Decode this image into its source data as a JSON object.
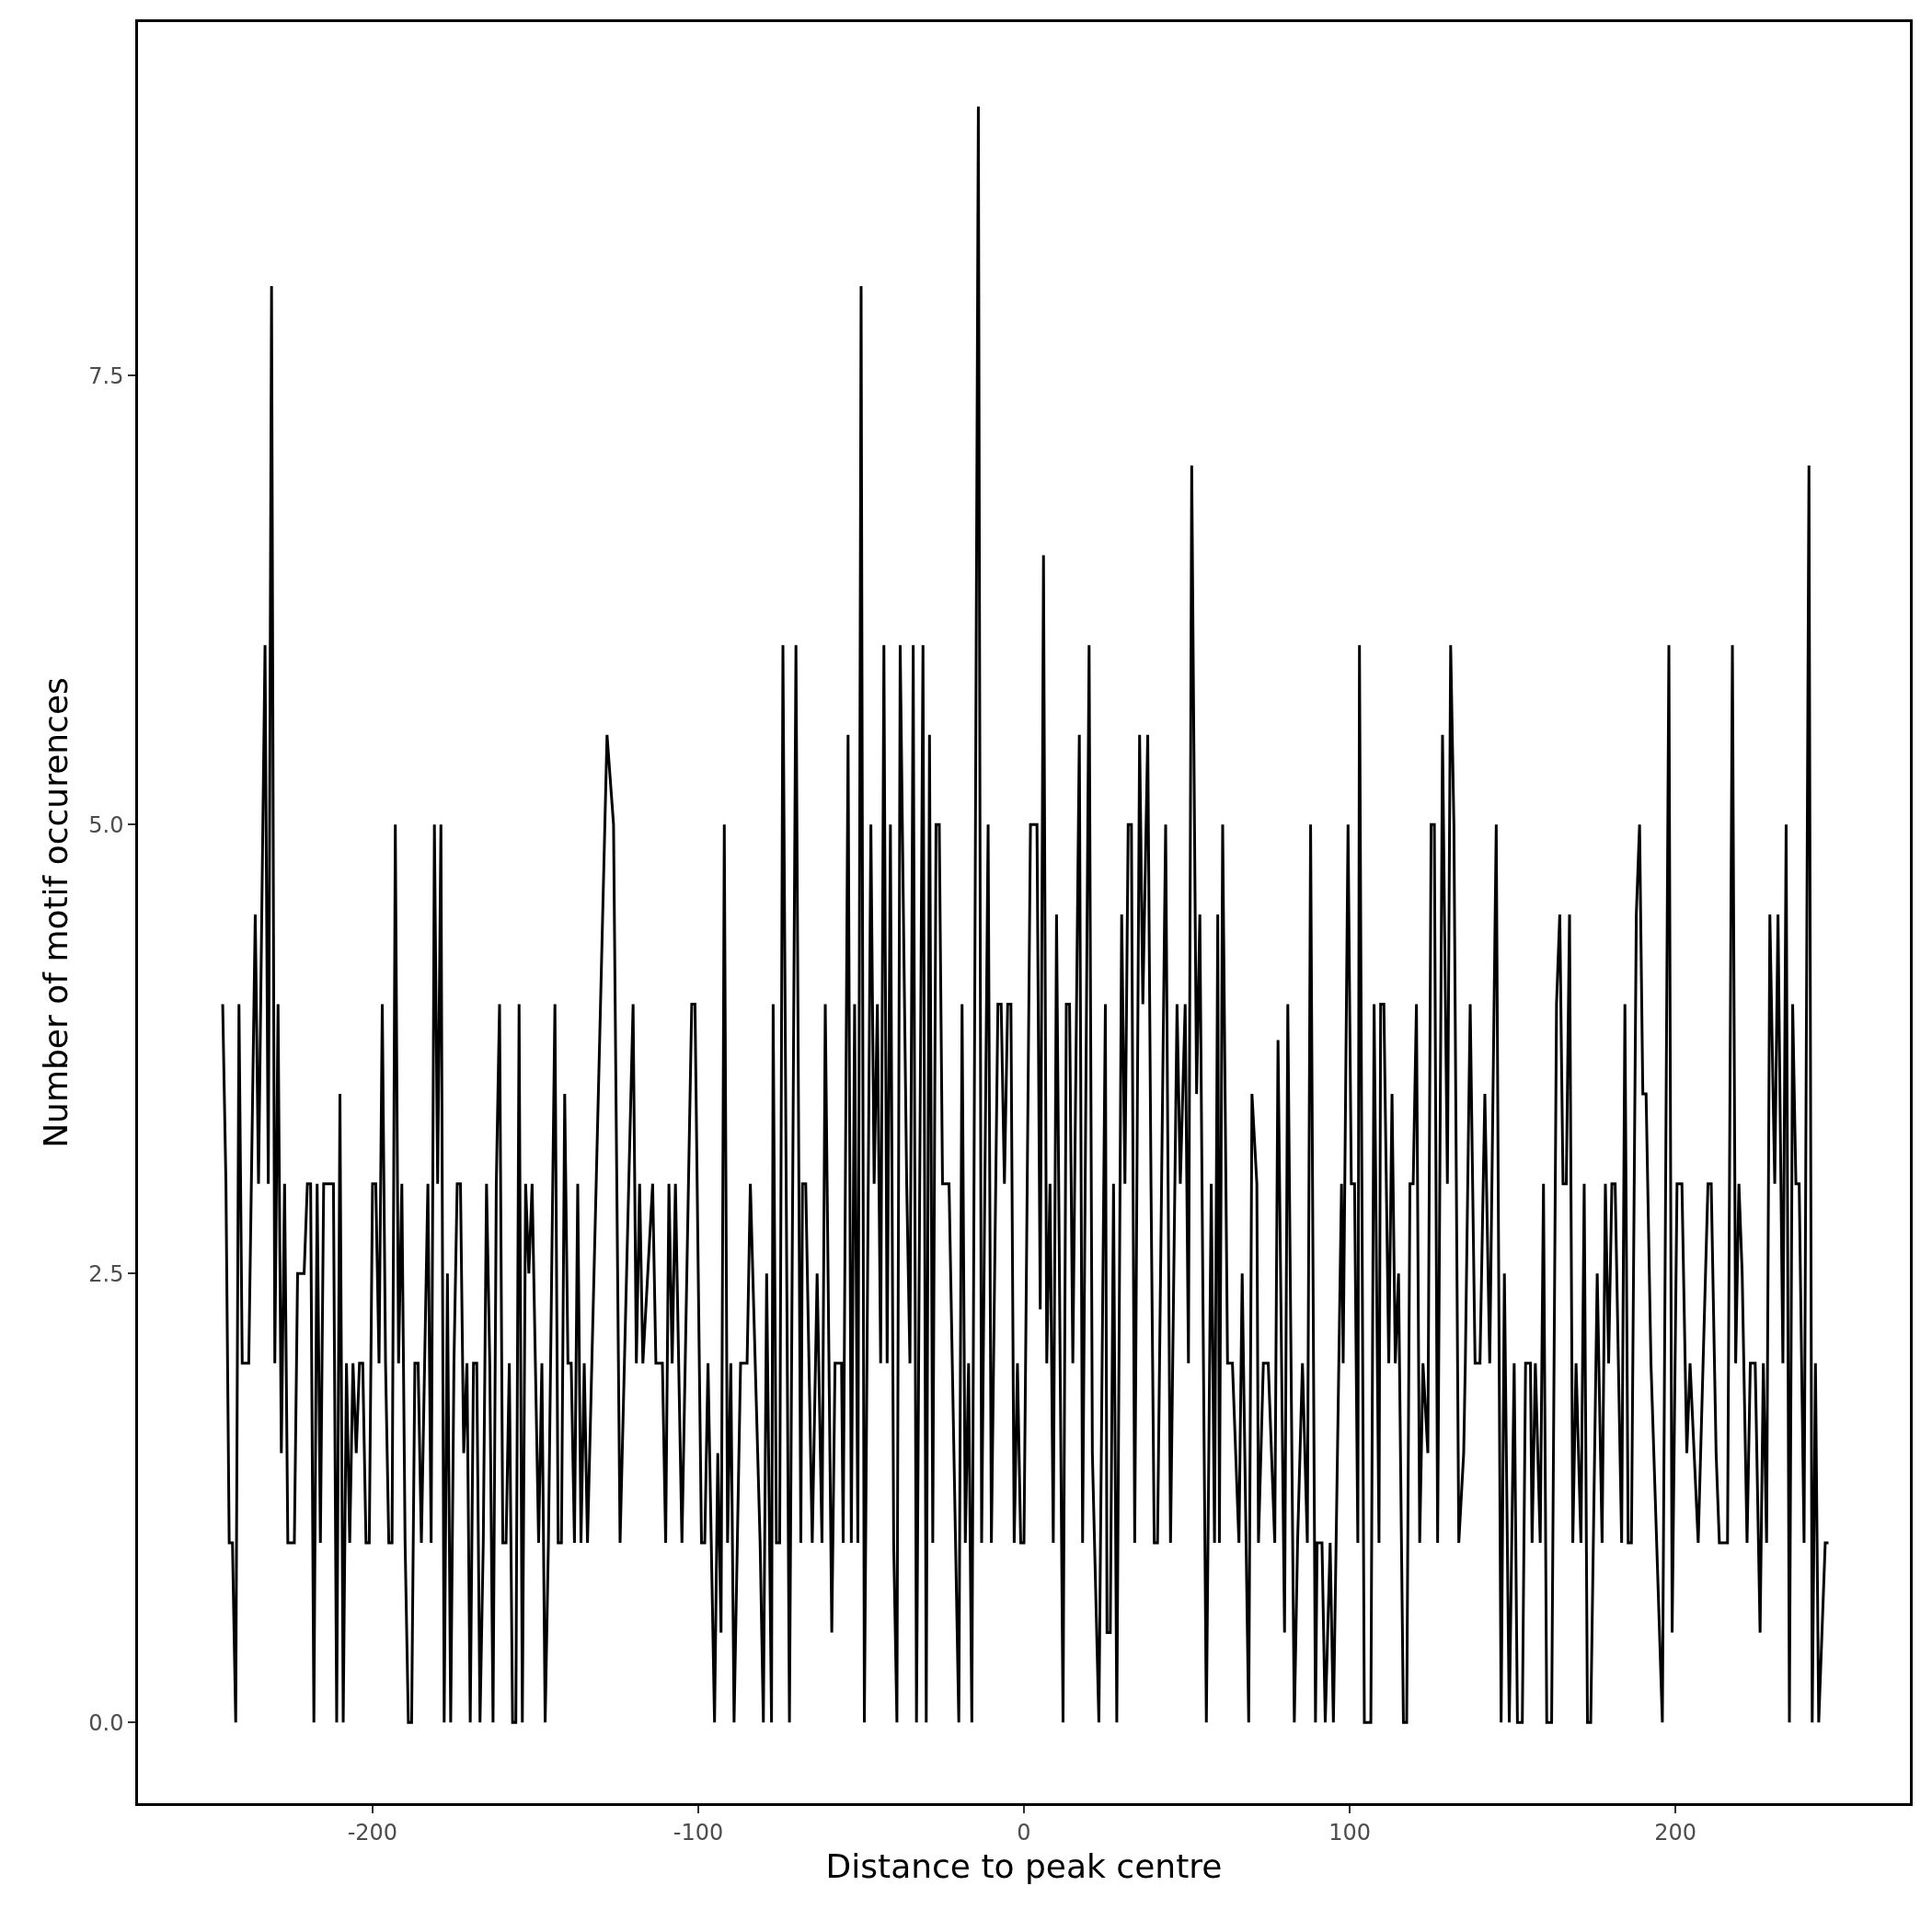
{
  "chart_data": {
    "type": "line",
    "xlabel": "Distance to peak centre",
    "ylabel": "Number of motif occurences",
    "xlim": [
      -272,
      272
    ],
    "ylim": [
      -0.45,
      9.47
    ],
    "xticks": [
      -200,
      -100,
      0,
      100,
      200
    ],
    "yticks": [
      {
        "value": 0,
        "label": "0.0"
      },
      {
        "value": 2.5,
        "label": "2.5"
      },
      {
        "value": 5,
        "label": "5.0"
      },
      {
        "value": 7.5,
        "label": "7.5"
      }
    ],
    "grid": false,
    "marker": "none",
    "line_style": "solid",
    "series": [
      {
        "color": "#000000",
        "x": [
          -246,
          -245,
          -244,
          -243,
          -242,
          -241,
          -240,
          -238,
          -236,
          -235,
          -233,
          -232,
          -231,
          -230,
          -229,
          -228,
          -227,
          -226,
          -224,
          -223,
          -221,
          -220,
          -219,
          -218,
          -217,
          -216,
          -215,
          -212,
          -211,
          -210,
          -209,
          -208,
          -207,
          -206,
          -205,
          -204,
          -203,
          -202,
          -201,
          -200,
          -199,
          -198,
          -197,
          -196,
          -195,
          -194,
          -193,
          -192,
          -191,
          -190,
          -189,
          -188,
          -187,
          -186,
          -185,
          -184,
          -183,
          -182,
          -181,
          -180,
          -179,
          -178,
          -177,
          -176,
          -175,
          -174,
          -173,
          -172,
          -171,
          -170,
          -169,
          -168,
          -167,
          -166,
          -165,
          -164,
          -163,
          -162,
          -161,
          -160,
          -159,
          -158,
          -157,
          -156,
          -155,
          -154,
          -153,
          -152,
          -151,
          -150,
          -149,
          -148,
          -147,
          -146,
          -144,
          -143,
          -142,
          -141,
          -140,
          -139,
          -138,
          -137,
          -136,
          -135,
          -134,
          -130,
          -128,
          -126,
          -124,
          -120,
          -119,
          -118,
          -117,
          -114,
          -113,
          -111,
          -110,
          -109,
          -108,
          -107,
          -105,
          -104,
          -102,
          -101,
          -99,
          -98,
          -97,
          -95,
          -94,
          -93,
          -92,
          -91,
          -90,
          -89,
          -87,
          -85,
          -84,
          -81,
          -80,
          -79,
          -77.5,
          -77,
          -76,
          -75,
          -74,
          -72,
          -70,
          -68.5,
          -68,
          -67,
          -65,
          -63.5,
          -62,
          -61,
          -59,
          -58,
          -56,
          -55.5,
          -54,
          -53,
          -52,
          -51,
          -50,
          -49,
          -47,
          -46,
          -45,
          -44,
          -43,
          -42,
          -41,
          -40,
          -39,
          -38,
          -36,
          -35,
          -34,
          -33,
          -31,
          -30,
          -29,
          -28,
          -27,
          -26,
          -25,
          -23,
          -20,
          -19,
          -18,
          -17,
          -16,
          -14,
          -13,
          -11,
          -10,
          -8,
          -7,
          -6,
          -5,
          -4,
          -3,
          -2,
          -1,
          0,
          2,
          4,
          5,
          6,
          7,
          8,
          9,
          10,
          12,
          13,
          14,
          15,
          17,
          18,
          20,
          21,
          23,
          25,
          25.5,
          26.5,
          27.5,
          28.5,
          30,
          31,
          32,
          33,
          34,
          35.5,
          36.5,
          38,
          39,
          40,
          41,
          43.5,
          45,
          47,
          48,
          49.5,
          50.5,
          51.5,
          53,
          54,
          56,
          57.5,
          58.5,
          59.5,
          60,
          61,
          62.5,
          64,
          66,
          67,
          69,
          70,
          71.5,
          72,
          73.5,
          75,
          77,
          78,
          80,
          81,
          83,
          84,
          85.5,
          87,
          88,
          89.5,
          90,
          91.5,
          92.5,
          94,
          95,
          97.5,
          98,
          99.5,
          100.5,
          101.5,
          102.5,
          103,
          104.5,
          106.5,
          107.5,
          109,
          109.5,
          110.5,
          112,
          113,
          114,
          115,
          116.5,
          117.5,
          118.5,
          119.5,
          120.5,
          121.5,
          122.5,
          124,
          125,
          126,
          127,
          128.5,
          130,
          131,
          132,
          133.5,
          135,
          135.5,
          137,
          138.5,
          140,
          141.5,
          143,
          145,
          146.5,
          147.5,
          149,
          150.5,
          151.5,
          153,
          154,
          155.5,
          156,
          157,
          158.5,
          159.5,
          160.5,
          162,
          163.5,
          164.5,
          165.5,
          166.5,
          167.5,
          168.5,
          169.5,
          171,
          172,
          173,
          174,
          176,
          177.5,
          178.5,
          179.5,
          180.5,
          181.5,
          183.5,
          184.5,
          185.5,
          186.5,
          188,
          189,
          190,
          191,
          192.5,
          196,
          198,
          199,
          200.5,
          202,
          203.5,
          204.5,
          207,
          208.5,
          210,
          211,
          212.5,
          213.5,
          216,
          217.5,
          218.5,
          219.5,
          220.5,
          222,
          223,
          224.5,
          226,
          227,
          228,
          229,
          230.5,
          231.5,
          233,
          234,
          235,
          236,
          237,
          238,
          239.5,
          241,
          242,
          243,
          244,
          246,
          247
        ],
        "values": [
          4,
          3,
          1,
          1,
          0,
          4,
          2,
          2,
          4.5,
          3,
          6,
          3,
          8,
          2,
          4,
          1.5,
          3,
          1,
          1,
          2.5,
          2.5,
          3,
          3,
          0,
          3,
          1,
          3,
          3,
          0,
          3.5,
          0,
          2,
          1,
          2,
          1.5,
          2,
          2,
          1,
          1,
          3,
          3,
          2,
          4,
          2,
          1,
          1,
          5,
          2,
          3,
          1,
          0,
          0,
          2,
          2,
          1,
          2,
          3,
          1,
          5,
          3,
          5,
          0,
          2.5,
          0,
          2,
          3,
          3,
          1.5,
          2,
          0,
          2,
          2,
          0,
          1,
          3,
          2,
          0,
          3,
          4,
          1,
          1,
          2,
          0,
          0,
          4,
          0,
          3,
          2.5,
          3,
          2,
          1,
          2,
          0,
          1,
          4,
          1,
          1,
          3.5,
          2,
          2,
          1,
          3,
          1,
          2,
          1,
          4,
          5.5,
          5,
          1,
          4,
          2,
          3,
          2,
          3,
          2,
          2,
          1,
          3,
          2,
          3,
          1,
          2,
          4,
          4,
          1,
          1,
          2,
          0,
          1.5,
          0.5,
          5,
          1,
          2,
          0,
          2,
          2,
          3,
          1,
          0,
          2.5,
          0,
          4,
          1,
          1,
          6,
          0,
          6,
          1,
          3,
          3,
          1,
          2.5,
          1,
          4,
          0.5,
          2,
          2,
          1,
          5.5,
          1,
          4,
          1,
          8,
          0,
          5,
          3,
          4,
          2,
          6,
          2,
          5,
          1,
          0,
          6,
          3,
          2,
          6,
          0,
          6,
          0,
          5.5,
          1,
          5,
          5,
          3,
          3,
          0,
          4,
          1,
          2,
          0,
          9,
          1,
          5,
          1,
          4,
          4,
          3,
          4,
          4,
          1,
          2,
          1,
          1,
          5,
          5,
          2.3,
          6.5,
          2,
          3,
          1,
          4.5,
          0,
          4,
          4,
          2,
          5.5,
          1,
          6,
          1.5,
          0,
          4,
          0.5,
          0.5,
          3,
          0,
          4.5,
          3,
          5,
          5,
          1,
          5.5,
          4,
          5.5,
          3,
          1,
          1,
          5,
          1,
          4,
          3,
          4,
          2,
          7,
          3.5,
          4.5,
          0,
          3,
          1,
          4.5,
          1,
          5,
          2,
          2,
          1,
          2.5,
          0,
          3.5,
          3,
          1,
          2,
          2,
          1,
          3.8,
          0.5,
          4,
          0,
          1,
          2,
          1,
          5,
          0,
          1,
          1,
          0,
          1,
          0,
          3,
          2,
          5,
          3,
          3,
          1,
          6,
          0,
          0,
          4,
          1,
          4,
          4,
          2,
          3.5,
          2,
          2.5,
          0,
          0,
          3,
          3,
          4,
          1,
          2,
          1.5,
          5,
          5,
          1,
          5.5,
          3,
          6,
          5,
          1,
          1.5,
          2,
          4,
          2,
          2,
          3.5,
          2,
          5,
          0,
          2.5,
          0,
          2,
          0,
          0,
          2,
          2,
          1,
          2,
          1,
          3,
          0,
          0,
          4,
          4.5,
          3,
          3,
          4.5,
          1,
          2,
          1,
          3,
          0,
          0,
          2.5,
          1,
          3,
          2,
          3,
          3,
          1,
          4,
          1,
          1,
          4.5,
          5,
          3.5,
          3.5,
          2,
          0,
          6,
          0.5,
          3,
          3,
          1.5,
          2,
          1,
          2,
          3,
          3,
          1.5,
          1,
          1,
          6,
          2,
          3,
          2.5,
          1,
          2,
          2,
          0.5,
          2,
          1,
          4.5,
          3,
          4.5,
          2,
          5,
          0,
          4,
          3,
          3,
          1,
          7,
          0,
          2,
          0,
          1,
          1
        ]
      }
    ]
  }
}
